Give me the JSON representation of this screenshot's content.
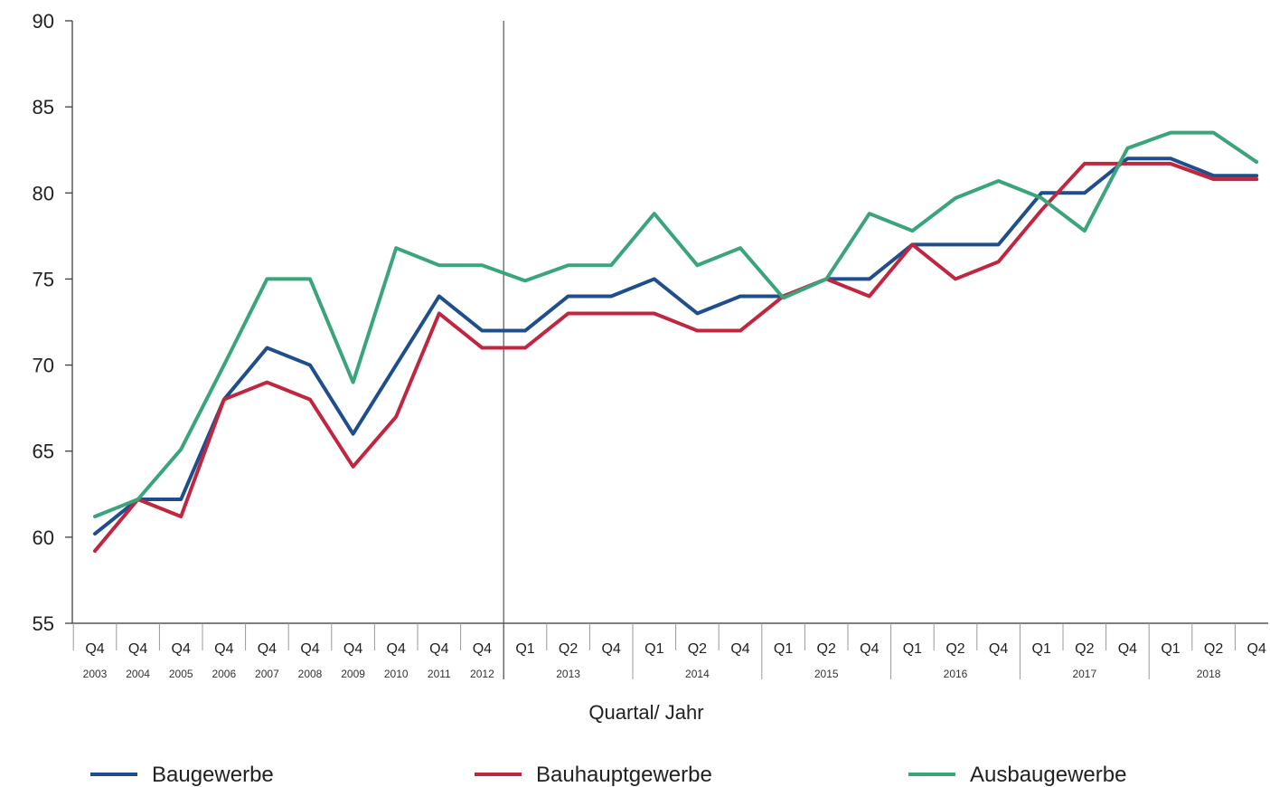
{
  "chart_data": {
    "type": "line",
    "xlabel": "Quartal/ Jahr",
    "ylabel": "",
    "ylim": [
      55,
      90
    ],
    "yticks": [
      55,
      60,
      65,
      70,
      75,
      80,
      85,
      90
    ],
    "categories": [
      {
        "quarter": "Q4",
        "year": "2003"
      },
      {
        "quarter": "Q4",
        "year": "2004"
      },
      {
        "quarter": "Q4",
        "year": "2005"
      },
      {
        "quarter": "Q4",
        "year": "2006"
      },
      {
        "quarter": "Q4",
        "year": "2007"
      },
      {
        "quarter": "Q4",
        "year": "2008"
      },
      {
        "quarter": "Q4",
        "year": "2009"
      },
      {
        "quarter": "Q4",
        "year": "2010"
      },
      {
        "quarter": "Q4",
        "year": "2011"
      },
      {
        "quarter": "Q4",
        "year": "2012"
      },
      {
        "quarter": "Q1",
        "year": "2013"
      },
      {
        "quarter": "Q2",
        "year": "2013"
      },
      {
        "quarter": "Q4",
        "year": "2013"
      },
      {
        "quarter": "Q1",
        "year": "2014"
      },
      {
        "quarter": "Q2",
        "year": "2014"
      },
      {
        "quarter": "Q4",
        "year": "2014"
      },
      {
        "quarter": "Q1",
        "year": "2015"
      },
      {
        "quarter": "Q2",
        "year": "2015"
      },
      {
        "quarter": "Q4",
        "year": "2015"
      },
      {
        "quarter": "Q1",
        "year": "2016"
      },
      {
        "quarter": "Q2",
        "year": "2016"
      },
      {
        "quarter": "Q4",
        "year": "2016"
      },
      {
        "quarter": "Q1",
        "year": "2017"
      },
      {
        "quarter": "Q2",
        "year": "2017"
      },
      {
        "quarter": "Q4",
        "year": "2017"
      },
      {
        "quarter": "Q1",
        "year": "2018"
      },
      {
        "quarter": "Q2",
        "year": "2018"
      },
      {
        "quarter": "Q4",
        "year": "2018"
      }
    ],
    "year_groups": [
      {
        "year": "2013",
        "from": 10,
        "to": 12
      },
      {
        "year": "2014",
        "from": 13,
        "to": 15
      },
      {
        "year": "2015",
        "from": 16,
        "to": 18
      },
      {
        "year": "2016",
        "from": 19,
        "to": 21
      },
      {
        "year": "2017",
        "from": 22,
        "to": 24
      },
      {
        "year": "2018",
        "from": 25,
        "to": 27
      }
    ],
    "separator_after_index": 9,
    "series": [
      {
        "name": "Baugewerbe",
        "color": "#1f4e8c",
        "values": [
          60.2,
          62.2,
          62.2,
          68,
          71,
          70,
          66,
          70,
          74,
          72,
          72,
          74,
          74,
          75,
          73,
          74,
          74,
          75,
          75,
          77,
          77,
          77,
          80,
          80,
          82,
          82,
          81,
          81
        ]
      },
      {
        "name": "Bauhauptgewerbe",
        "color": "#c0263f",
        "values": [
          59.2,
          62.2,
          61.2,
          68,
          69,
          68,
          64.1,
          67,
          73,
          71,
          71,
          73,
          73,
          73,
          72,
          72,
          74,
          75,
          74,
          77,
          75,
          76,
          79,
          81.7,
          81.7,
          81.7,
          80.8,
          80.8
        ]
      },
      {
        "name": "Ausbaugewerbe",
        "color": "#3aa57a",
        "values": [
          61.2,
          62.2,
          65.1,
          70,
          75,
          75,
          69,
          76.8,
          75.8,
          75.8,
          74.9,
          75.8,
          75.8,
          78.8,
          75.8,
          76.8,
          73.9,
          75,
          78.8,
          77.8,
          79.7,
          80.7,
          79.7,
          77.8,
          82.6,
          83.5,
          83.5,
          81.8
        ]
      }
    ],
    "legend": "bottom",
    "grid": false
  }
}
